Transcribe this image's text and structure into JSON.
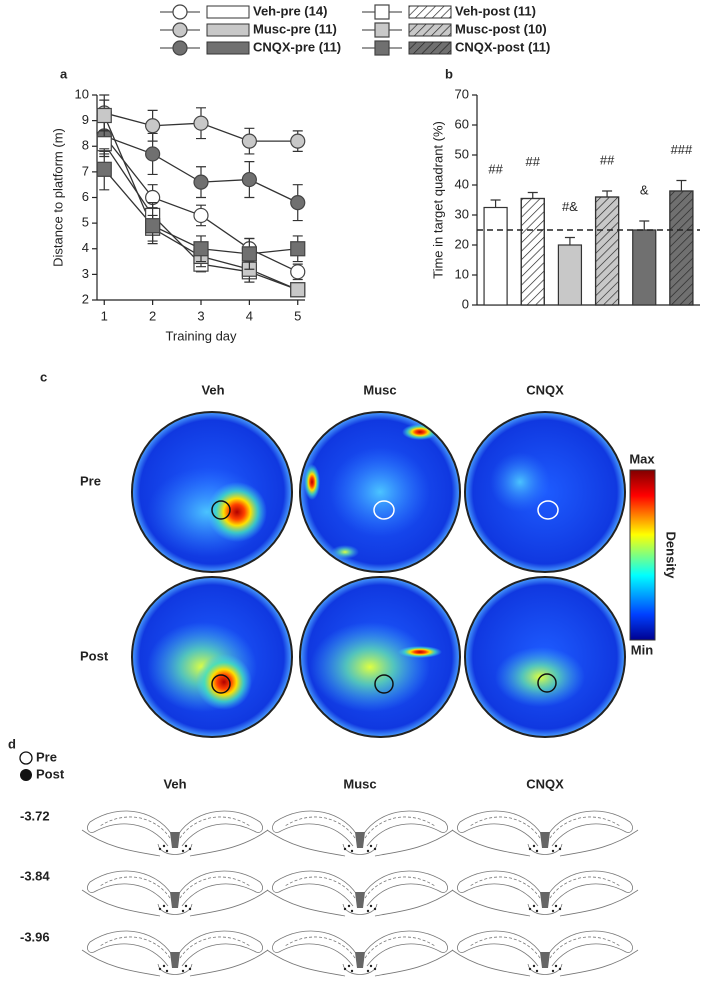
{
  "panels": [
    "a",
    "b",
    "c",
    "d"
  ],
  "chart_data": [
    {
      "type": "line",
      "xlabel": "Training day",
      "ylabel": "Distance to platform (m)",
      "x": [
        1,
        2,
        3,
        4,
        5
      ],
      "xlim": [
        0.85,
        5.15
      ],
      "xticks": [
        1,
        2,
        3,
        4,
        5
      ],
      "ylim": [
        2,
        10
      ],
      "yticks": [
        2,
        3,
        4,
        5,
        6,
        7,
        8,
        9,
        10
      ],
      "series": [
        {
          "name": "Veh-pre (14)",
          "color": "#ffffff",
          "marker": "circle",
          "hatch": false,
          "values": [
            8.4,
            6.0,
            5.3,
            4.0,
            3.1
          ],
          "errors": [
            0.6,
            0.5,
            0.4,
            0.4,
            0.3
          ]
        },
        {
          "name": "Musc-pre (11)",
          "color": "#c8c8c8",
          "marker": "circle",
          "hatch": false,
          "values": [
            9.3,
            8.8,
            8.9,
            8.2,
            8.2
          ],
          "errors": [
            0.7,
            0.6,
            0.6,
            0.5,
            0.4
          ]
        },
        {
          "name": "CNQX-pre (11)",
          "color": "#707070",
          "marker": "circle",
          "hatch": false,
          "values": [
            8.4,
            7.7,
            6.6,
            6.7,
            5.8
          ],
          "errors": [
            0.7,
            0.8,
            0.6,
            0.7,
            0.7
          ]
        },
        {
          "name": "Veh-post (11)",
          "color": "#ffffff",
          "marker": "square",
          "hatch": true,
          "values": [
            8.1,
            5.3,
            3.4,
            3.1,
            2.4
          ],
          "errors": [
            0.5,
            0.5,
            0.3,
            0.4,
            0.2
          ]
        },
        {
          "name": "Musc-post (10)",
          "color": "#c8c8c8",
          "marker": "square",
          "hatch": true,
          "values": [
            9.2,
            4.8,
            3.7,
            3.2,
            2.4
          ],
          "errors": [
            0.6,
            0.5,
            0.4,
            0.5,
            0.2
          ]
        },
        {
          "name": "CNQX-post (11)",
          "color": "#707070",
          "marker": "square",
          "hatch": true,
          "values": [
            7.1,
            4.9,
            4.0,
            3.8,
            4.0
          ],
          "errors": [
            0.8,
            0.7,
            0.5,
            0.6,
            0.5
          ]
        }
      ]
    },
    {
      "type": "bar",
      "ylabel": "Time in target quadrant (%)",
      "ylim": [
        0,
        70
      ],
      "yticks": [
        0,
        10,
        20,
        30,
        40,
        50,
        60,
        70
      ],
      "refline": 25,
      "values": [
        32.5,
        35.5,
        20,
        36,
        25,
        38
      ],
      "errors": [
        2.5,
        2,
        2.5,
        2,
        3,
        3.5
      ],
      "colors": [
        "#ffffff",
        "#ffffff",
        "#c8c8c8",
        "#c8c8c8",
        "#707070",
        "#707070"
      ],
      "hatch": [
        false,
        true,
        false,
        true,
        false,
        true
      ],
      "annotations": [
        "##",
        "##",
        "#&",
        "##",
        "&",
        "###"
      ]
    }
  ],
  "heatmaps": {
    "columns": [
      "Veh",
      "Musc",
      "CNQX"
    ],
    "rows": [
      "Pre",
      "Post"
    ],
    "colorbar": {
      "max": "Max",
      "min": "Min",
      "label": "Density"
    }
  },
  "sections": {
    "legend": [
      "Pre",
      "Post"
    ],
    "columns": [
      "Veh",
      "Musc",
      "CNQX"
    ],
    "levels": [
      "-3.72",
      "-3.84",
      "-3.96"
    ]
  }
}
